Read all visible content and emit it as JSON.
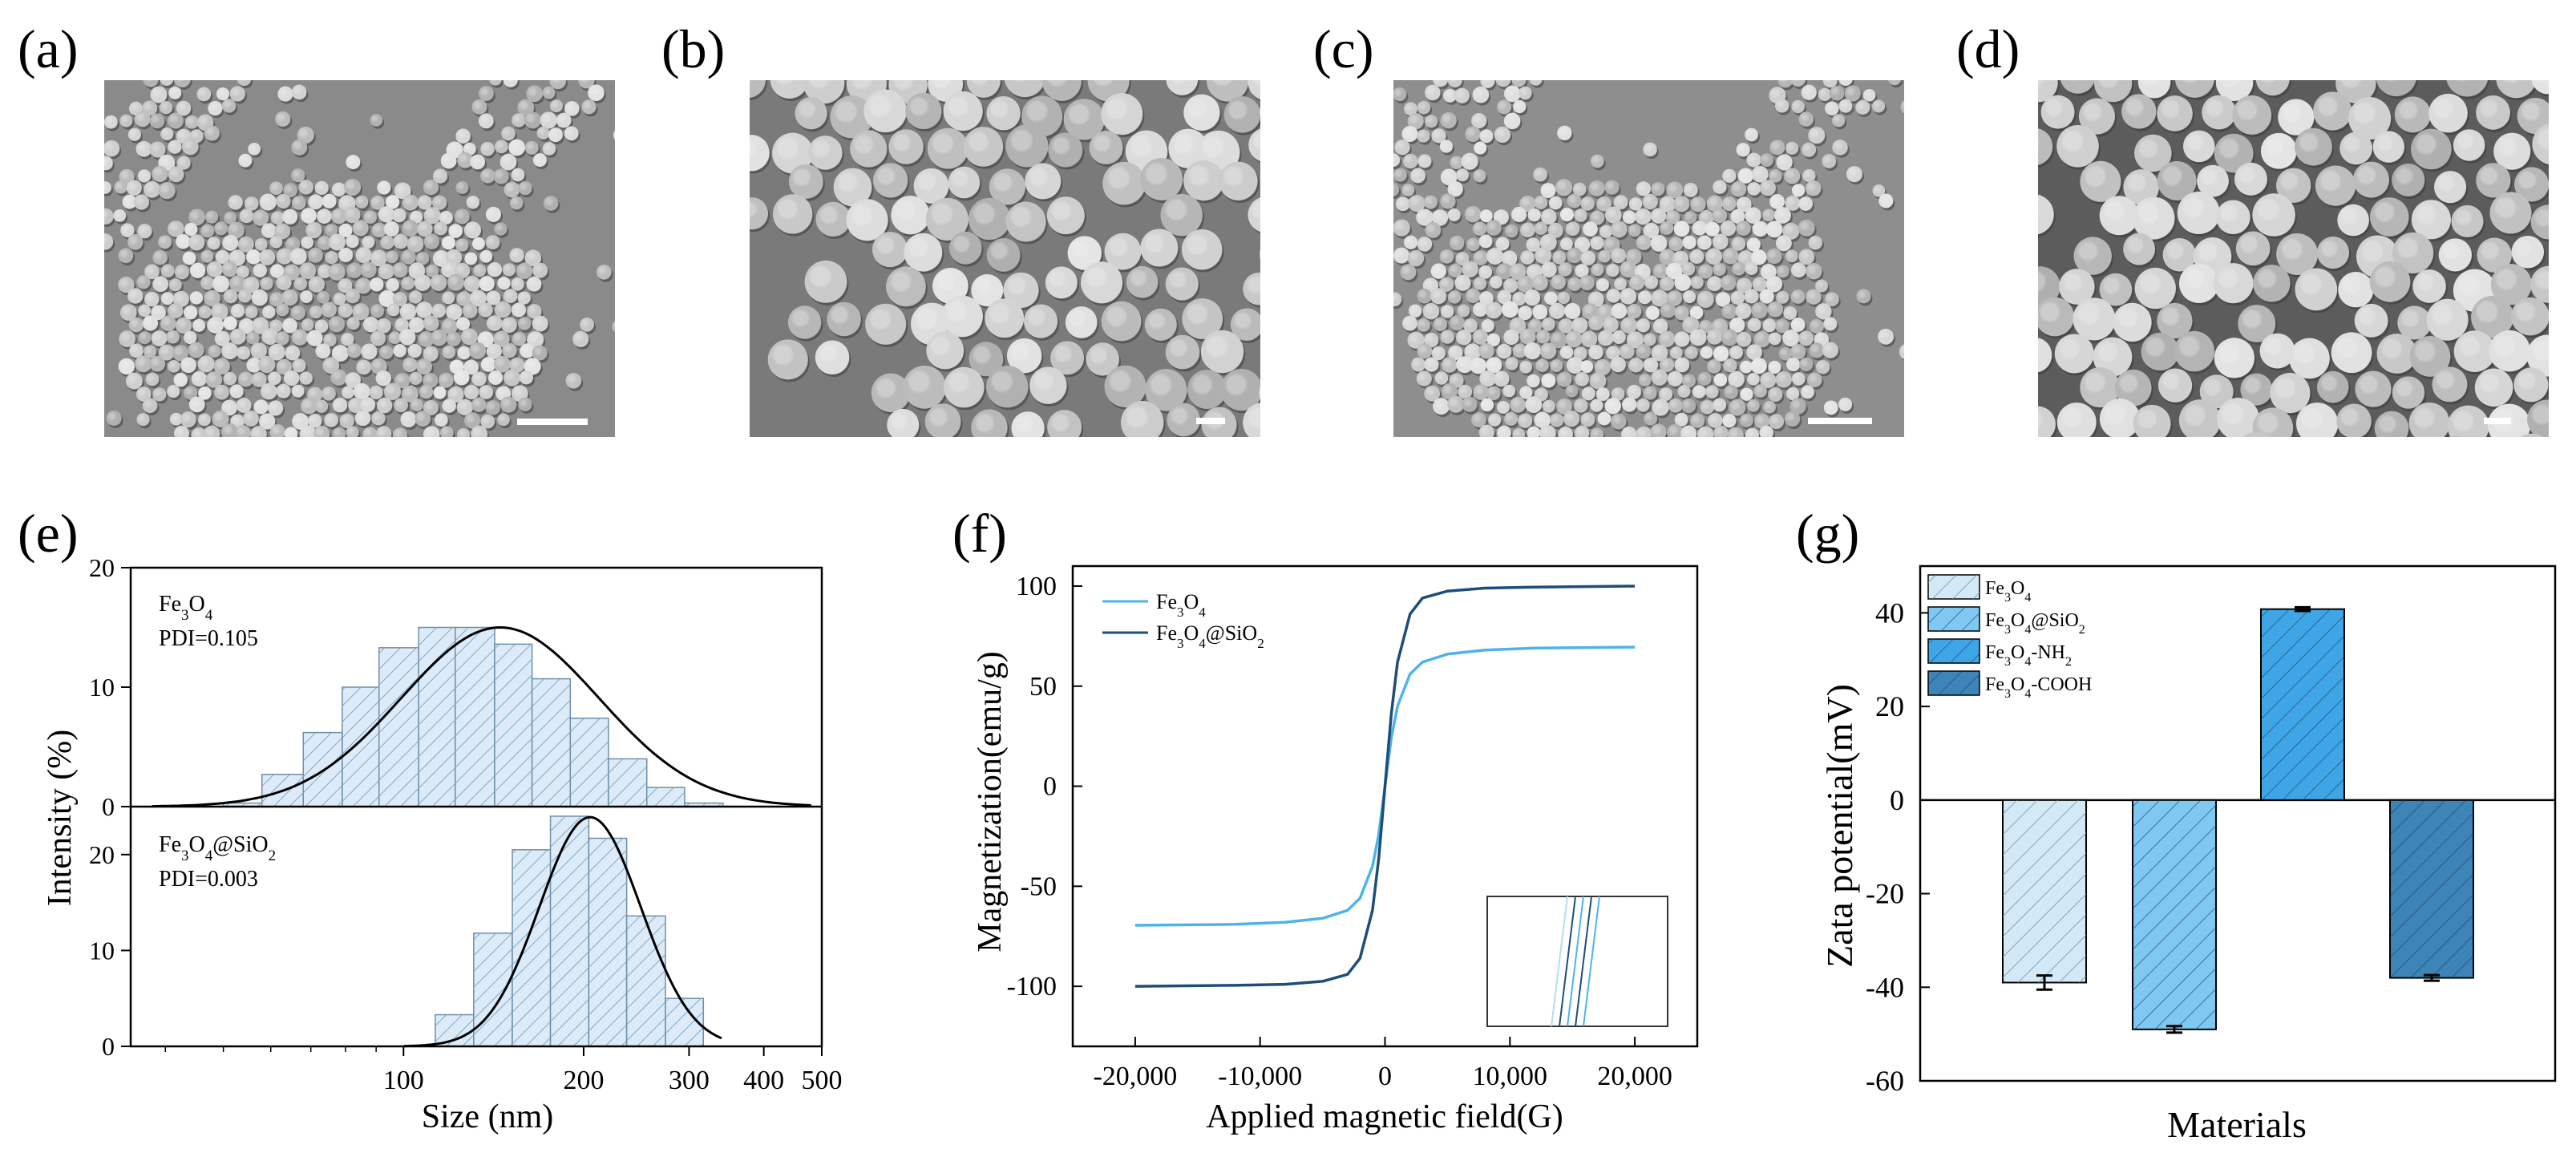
{
  "panel_labels": [
    "(a)",
    "(b)",
    "(c)",
    "(d)",
    "(e)",
    "(f)",
    "(g)"
  ],
  "micrographs": [
    {
      "panel": "(a)",
      "content": "SEM image of Fe3O4 nanoparticles, low magnification",
      "particle_scale": "small",
      "density": "clustered",
      "background": "#8a8a8a"
    },
    {
      "panel": "(b)",
      "content": "SEM image of Fe3O4 nanoparticles, high magnification",
      "particle_scale": "large",
      "density": "dense",
      "background": "#7a7a7a"
    },
    {
      "panel": "(c)",
      "content": "SEM image of Fe3O4@SiO2 nanoparticles, low magnification",
      "particle_scale": "small",
      "density": "clustered",
      "background": "#8e8e8e"
    },
    {
      "panel": "(d)",
      "content": "SEM image of Fe3O4@SiO2 nanoparticles, high magnification",
      "particle_scale": "large",
      "density": "full",
      "background": "#5c5c5c"
    }
  ],
  "chart_data": [
    {
      "panel": "(e)",
      "type": "bar",
      "subtype": "stacked-histogram-with-fit",
      "xlabel": "Size (nm)",
      "ylabel": "Intensity (%)",
      "x_scale": "log",
      "xlim": [
        35,
        500
      ],
      "x_ticks": [
        "100",
        "200",
        "300",
        "400",
        "500"
      ],
      "fill_color": "#dcebf7",
      "hatch_color": "#7ea8c9",
      "series": [
        {
          "name": "Fe3O4",
          "annotation": "PDI=0.105",
          "ylim": [
            0,
            20
          ],
          "y_ticks": [
            "0",
            "10",
            "20"
          ],
          "bins_nm": [
            [
              50,
              58
            ],
            [
              58,
              68
            ],
            [
              68,
              79
            ],
            [
              79,
              91
            ],
            [
              91,
              106
            ],
            [
              106,
              122
            ],
            [
              122,
              142
            ],
            [
              142,
              164
            ],
            [
              164,
              190
            ],
            [
              190,
              220
            ],
            [
              220,
              255
            ],
            [
              255,
              295
            ],
            [
              295,
              342
            ]
          ],
          "values": [
            0.3,
            2.7,
            6.2,
            10.0,
            13.3,
            15.0,
            15.0,
            13.6,
            10.7,
            7.4,
            4.0,
            1.6,
            0.3
          ],
          "fit": "gaussian",
          "fit_peak_nm": 145,
          "fit_peak": 15.0
        },
        {
          "name": "Fe3O4@SiO2",
          "annotation": "PDI=0.003",
          "ylim": [
            0,
            25
          ],
          "y_ticks": [
            "0",
            "10",
            "20"
          ],
          "bins_nm": [
            [
              113,
              131
            ],
            [
              131,
              152
            ],
            [
              152,
              176
            ],
            [
              176,
              204
            ],
            [
              204,
              236
            ],
            [
              236,
              274
            ],
            [
              274,
              317
            ]
          ],
          "values": [
            3.3,
            11.8,
            20.5,
            24.0,
            21.7,
            13.6,
            5.0
          ],
          "fit": "gaussian",
          "fit_peak_nm": 205,
          "fit_peak": 23.9
        }
      ]
    },
    {
      "panel": "(f)",
      "type": "line",
      "xlabel": "Applied magnetic field(G)",
      "ylabel": "Magnetization(emu/g)",
      "xlim": [
        -25000,
        25000
      ],
      "ylim": [
        -130,
        110
      ],
      "x_ticks": [
        "-20,000",
        "-10,000",
        "0",
        "10,000",
        "20,000"
      ],
      "y_ticks": [
        "100",
        "50",
        "0",
        "-50",
        "-100"
      ],
      "legend": "top-left",
      "inset": "zoom of hysteresis loop near origin",
      "series": [
        {
          "name": "Fe3O4",
          "color": "#4fb3ea",
          "x": [
            -20000,
            -12000,
            -8000,
            -5000,
            -3000,
            -2000,
            -1000,
            -500,
            0,
            500,
            1000,
            2000,
            3000,
            5000,
            8000,
            12000,
            20000
          ],
          "values": [
            -69.5,
            -69.0,
            -68.0,
            -66.0,
            -62.0,
            -56.0,
            -40.0,
            -24.0,
            0,
            24.0,
            40.0,
            56.0,
            62.0,
            66.0,
            68.0,
            69.0,
            69.5
          ]
        },
        {
          "name": "Fe3O4@SiO2",
          "color": "#1d4e79",
          "x": [
            -20000,
            -12000,
            -8000,
            -5000,
            -3000,
            -2000,
            -1000,
            -500,
            0,
            500,
            1000,
            2000,
            3000,
            5000,
            8000,
            12000,
            20000
          ],
          "values": [
            -100.0,
            -99.5,
            -99.0,
            -97.5,
            -94.0,
            -86.0,
            -62.0,
            -36.0,
            0,
            36.0,
            62.0,
            86.0,
            94.0,
            97.5,
            99.0,
            99.5,
            100.0
          ]
        }
      ]
    },
    {
      "panel": "(g)",
      "type": "bar",
      "xlabel": "Materials",
      "ylabel": "Zata potential(mV)",
      "ylim": [
        -60,
        50
      ],
      "y_ticks": [
        "40",
        "20",
        "0",
        "-20",
        "-40",
        "-60"
      ],
      "legend": "top-left",
      "series": [
        {
          "name": "Fe3O4",
          "value": -39.0,
          "error": 1.5,
          "color": "#d4e9f6"
        },
        {
          "name": "Fe3O4@SiO2",
          "value": -49.0,
          "error": 0.7,
          "color": "#7ec8f2"
        },
        {
          "name": "Fe3O4-NH2",
          "value": 40.8,
          "error": 0.4,
          "color": "#3ea6e7"
        },
        {
          "name": "Fe3O4-COOH",
          "value": -38.0,
          "error": 0.6,
          "color": "#3d84b8"
        }
      ]
    }
  ]
}
